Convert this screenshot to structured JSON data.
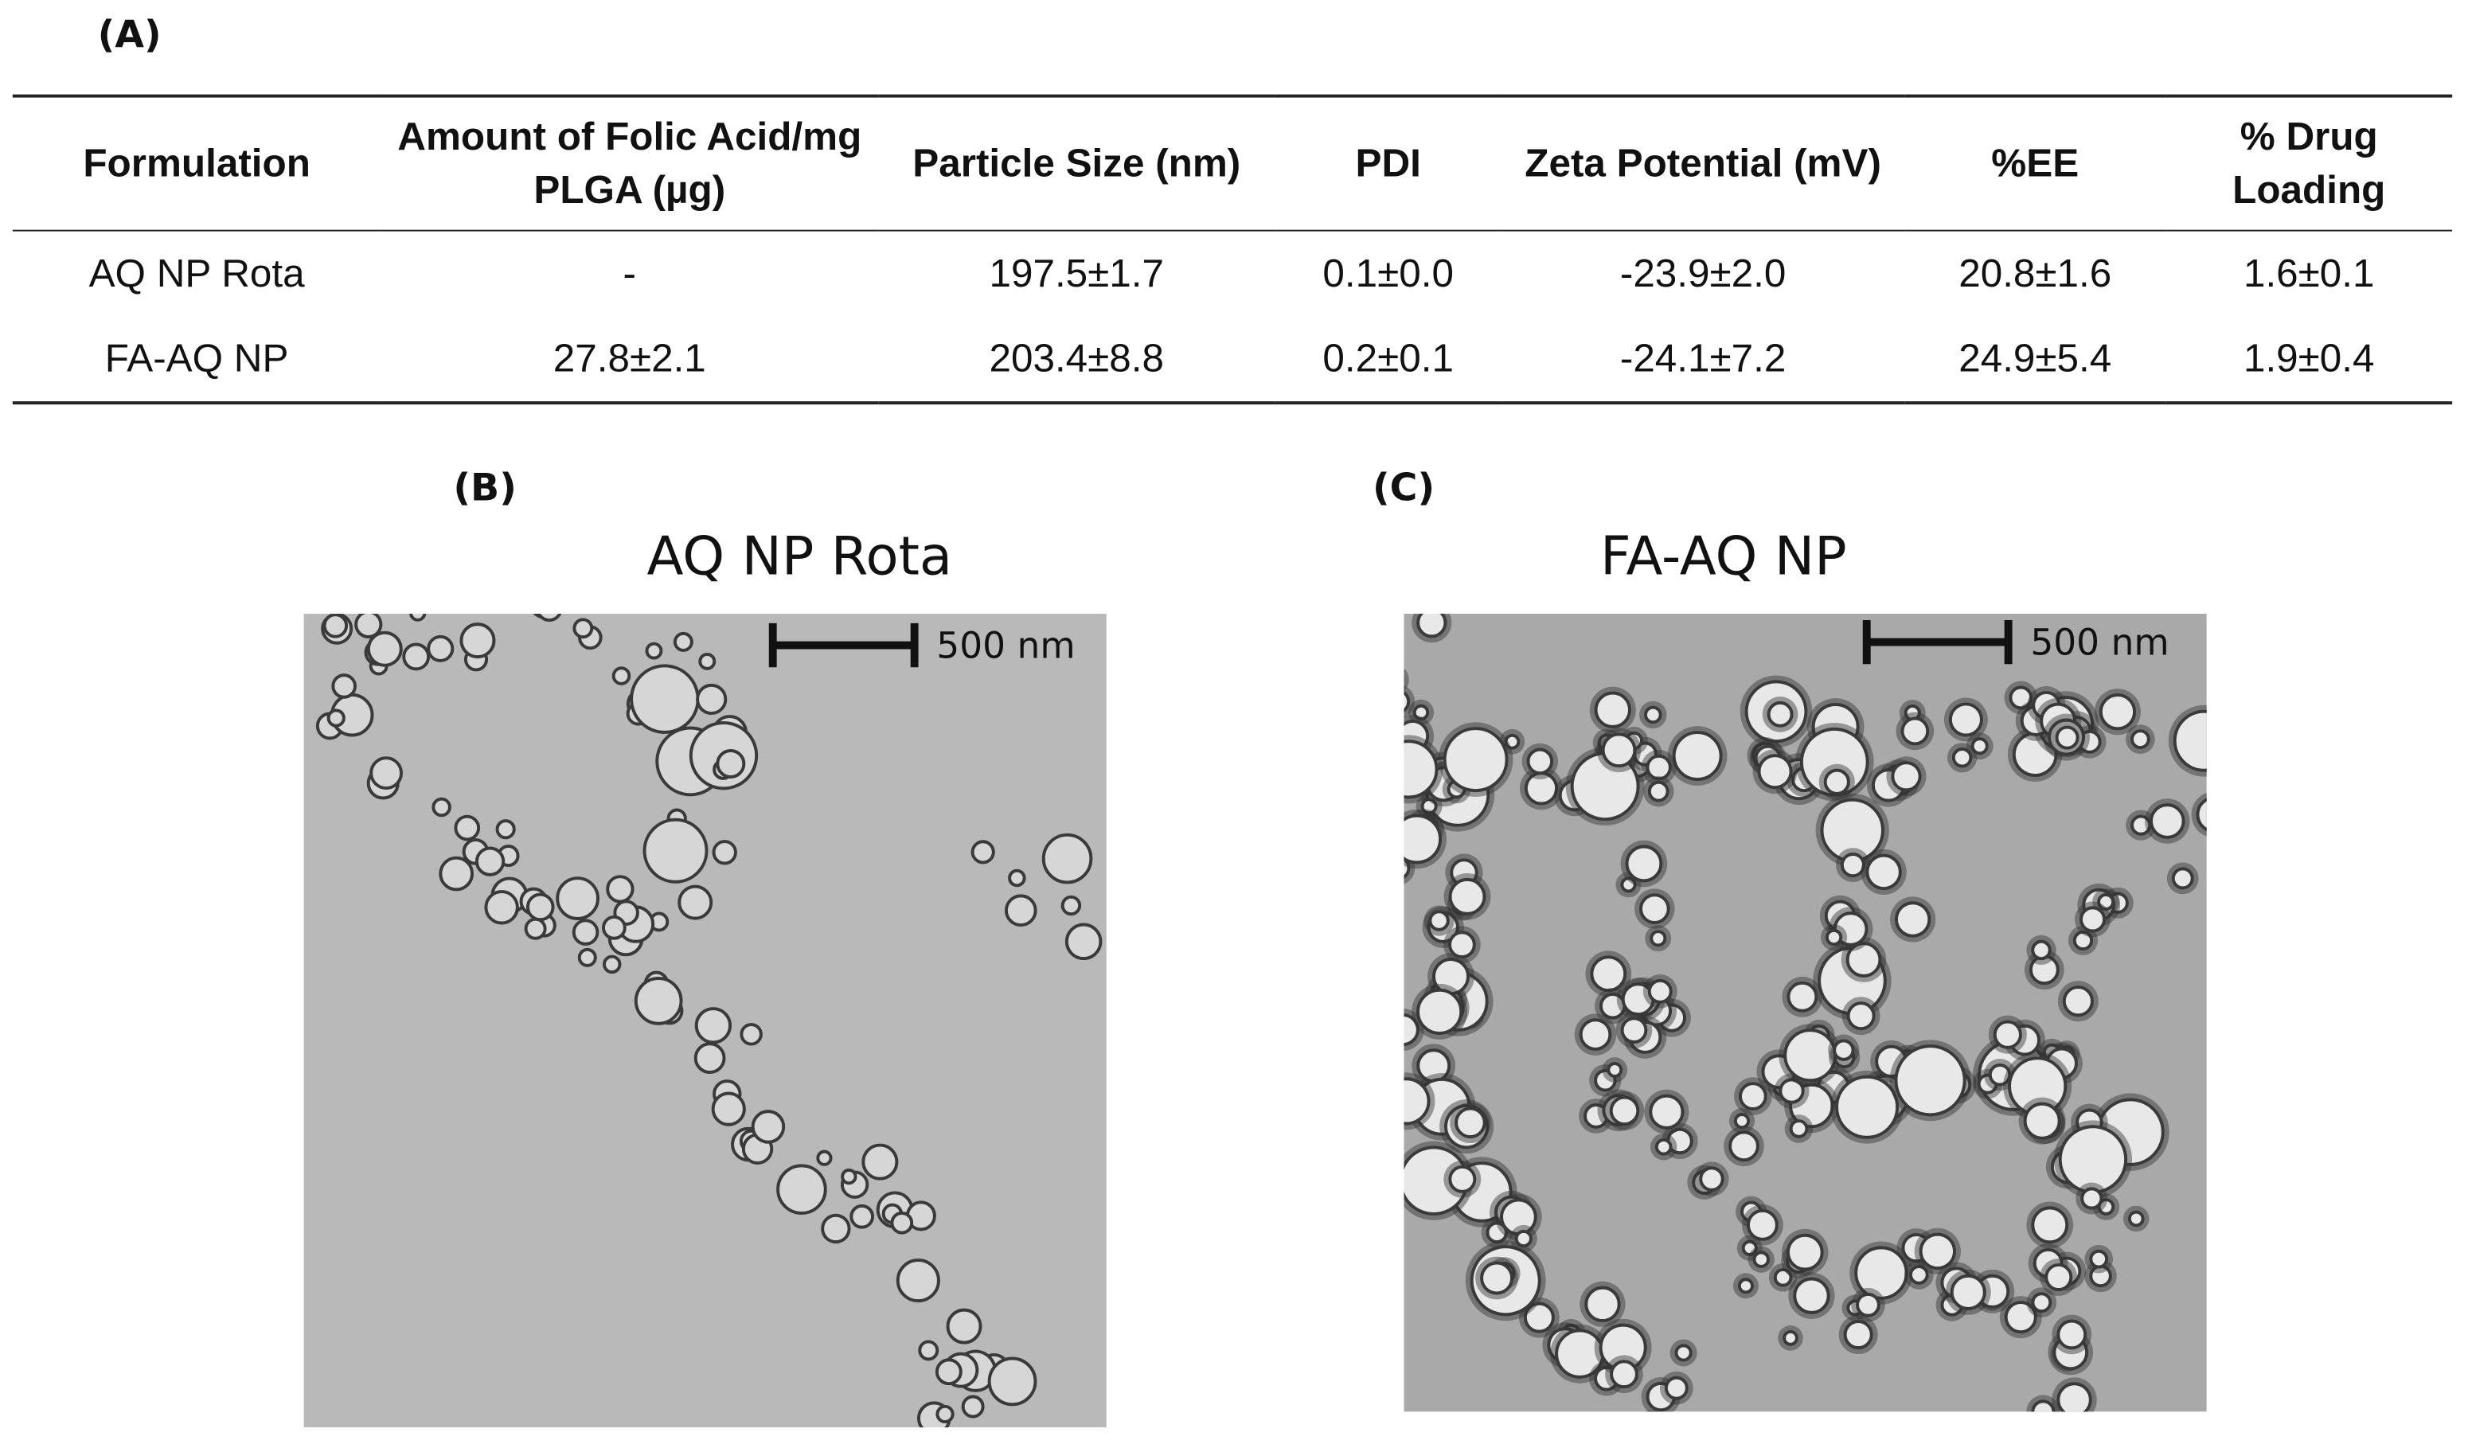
{
  "panel_a": {
    "label": "(A)",
    "table": {
      "header": [
        "Formulation",
        "Amount of Folic Acid/mg PLGA (µg)",
        "Particle Size (nm)",
        "PDI",
        "Zeta Potential (mV)",
        "%EE",
        "% Drug Loading"
      ],
      "rows": [
        [
          "AQ NP Rota",
          "-",
          "197.5±1.7",
          "0.1±0.0",
          "-23.9±2.0",
          "20.8±1.6",
          "1.6±0.1"
        ],
        [
          "FA-AQ NP",
          "27.8±2.1",
          "203.4±8.8",
          "0.2±0.1",
          "-24.1±7.2",
          "24.9±5.4",
          "1.9±0.4"
        ]
      ]
    }
  },
  "panel_b": {
    "label": "(B)",
    "title": "AQ NP Rota",
    "scale_bar": "500 nm"
  },
  "panel_c": {
    "label": "(C)",
    "title": "FA-AQ NP",
    "scale_bar": "500 nm"
  }
}
